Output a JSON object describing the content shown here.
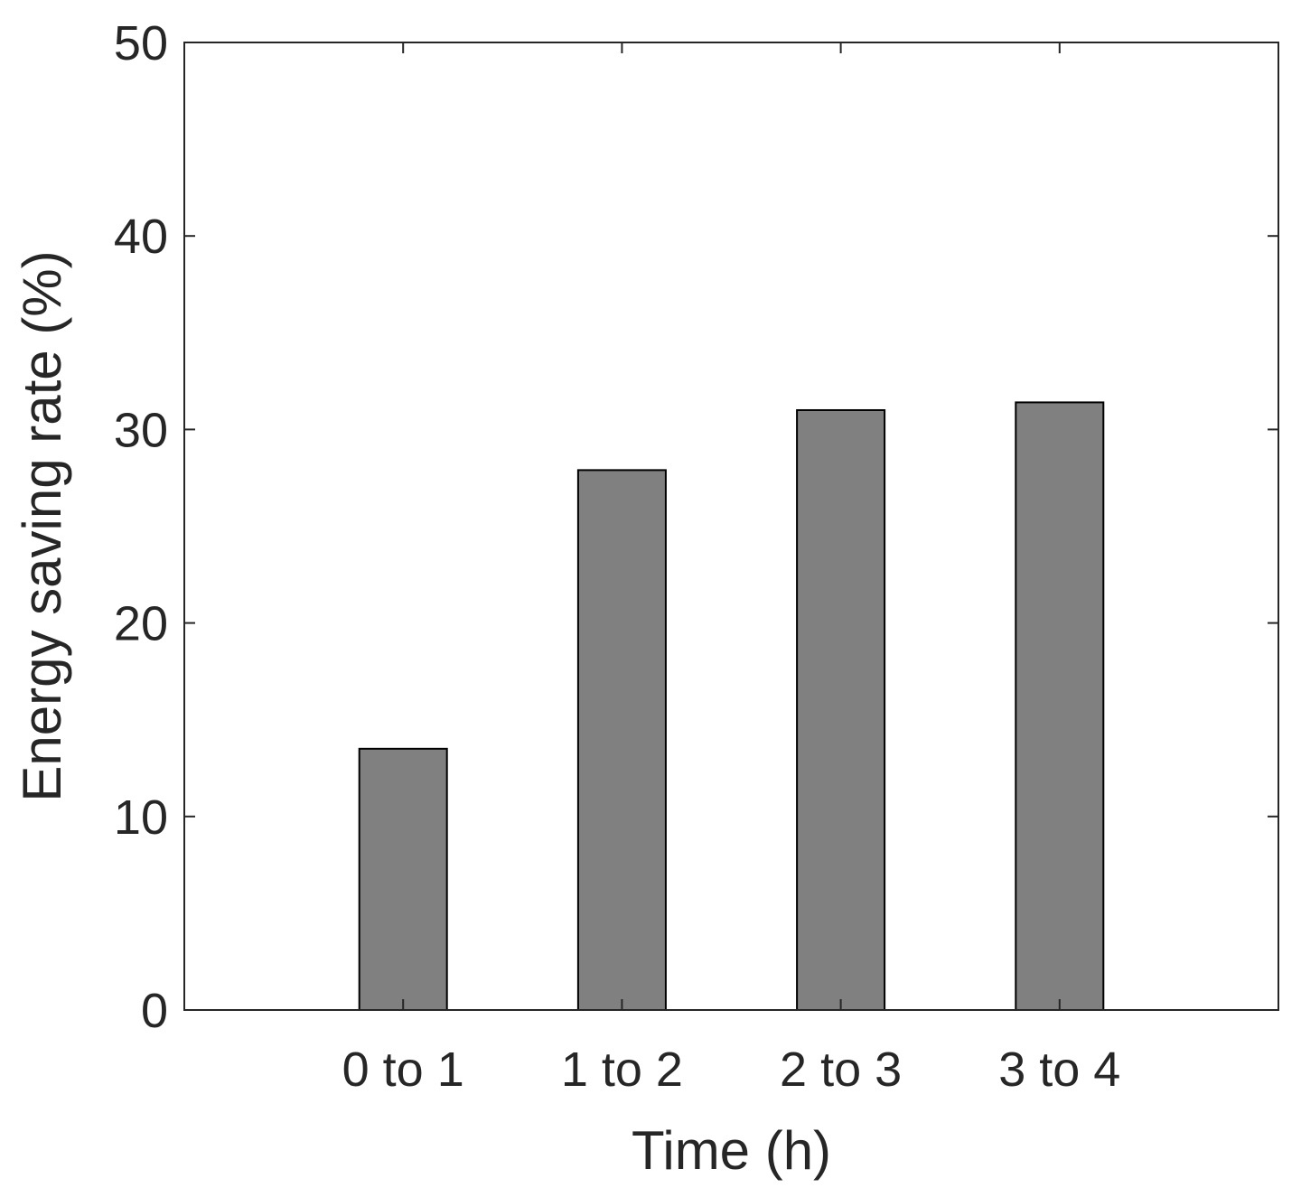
{
  "chart_data": {
    "type": "bar",
    "title": "",
    "xlabel": "Time (h)",
    "ylabel": "Energy saving rate (%)",
    "categories": [
      "0 to 1",
      "1 to 2",
      "2 to 3",
      "3 to 4"
    ],
    "values": [
      13.5,
      27.9,
      31.0,
      31.4
    ],
    "ylim": [
      0,
      50
    ],
    "yticks": [
      0,
      10,
      20,
      30,
      40,
      50
    ],
    "grid": false,
    "legend": "none",
    "bar_color": "#808080",
    "edge_color": "#000000"
  }
}
